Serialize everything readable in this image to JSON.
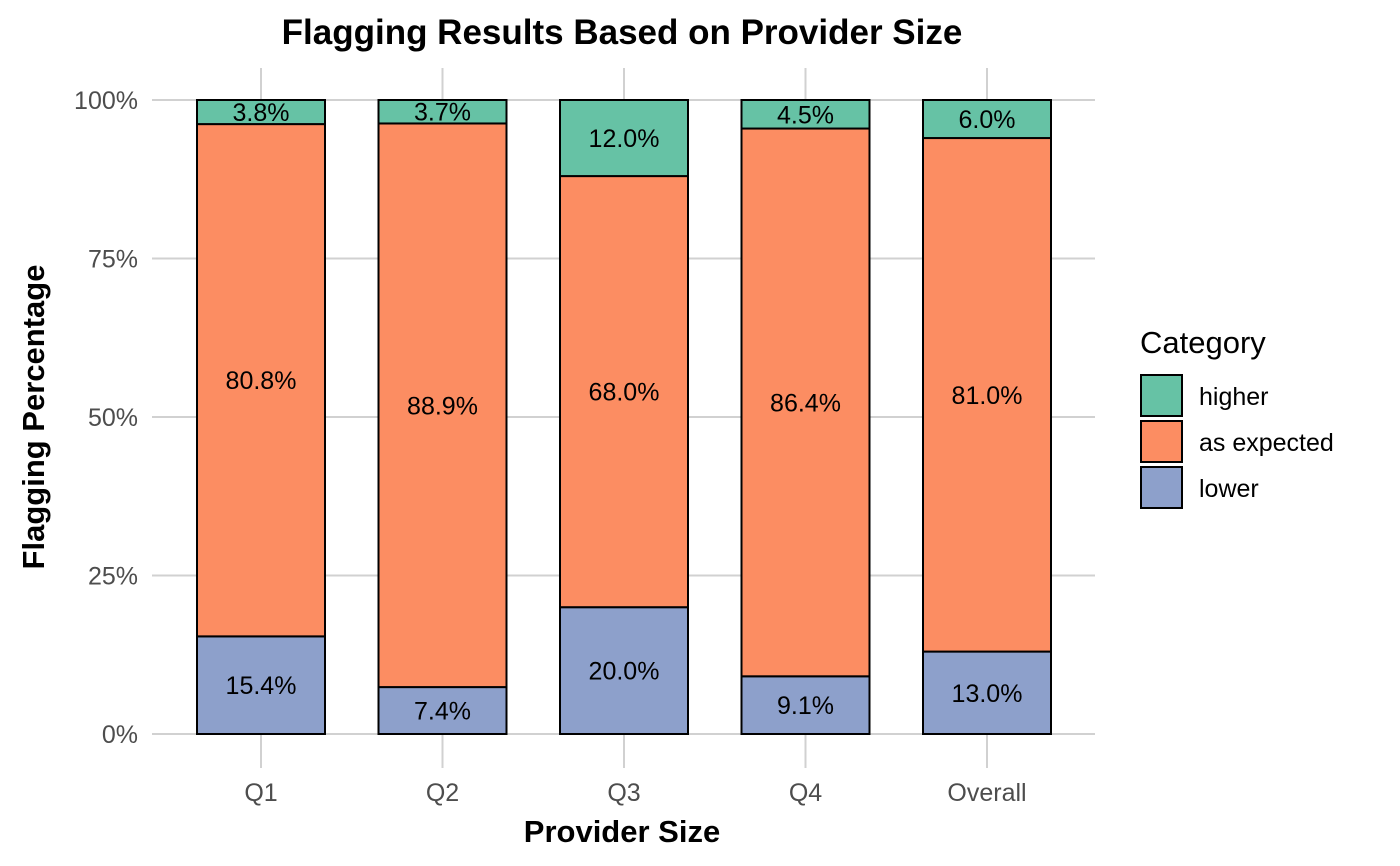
{
  "chart_data": {
    "type": "bar",
    "stacked": true,
    "title": "Flagging Results Based on Provider Size",
    "xlabel": "Provider Size",
    "ylabel": "Flagging Percentage",
    "categories": [
      "Q1",
      "Q2",
      "Q3",
      "Q4",
      "Overall"
    ],
    "ylim": [
      0,
      100
    ],
    "yticks": [
      0,
      25,
      50,
      75,
      100
    ],
    "ytick_labels": [
      "0%",
      "25%",
      "50%",
      "75%",
      "100%"
    ],
    "grid": true,
    "legend": {
      "title": "Category",
      "position": "right"
    },
    "series": [
      {
        "name": "lower",
        "color": "#8DA0CB",
        "values": [
          15.4,
          7.4,
          20.0,
          9.1,
          13.0
        ],
        "labels": [
          "15.4%",
          "7.4%",
          "20.0%",
          "9.1%",
          "13.0%"
        ]
      },
      {
        "name": "as expected",
        "color": "#FC8D62",
        "values": [
          80.8,
          88.9,
          68.0,
          86.4,
          81.0
        ],
        "labels": [
          "80.8%",
          "88.9%",
          "68.0%",
          "86.4%",
          "81.0%"
        ]
      },
      {
        "name": "higher",
        "color": "#66C2A5",
        "values": [
          3.8,
          3.7,
          12.0,
          4.5,
          6.0
        ],
        "labels": [
          "3.8%",
          "3.7%",
          "12.0%",
          "4.5%",
          "6.0%"
        ]
      }
    ],
    "legend_order": [
      "higher",
      "as expected",
      "lower"
    ]
  }
}
